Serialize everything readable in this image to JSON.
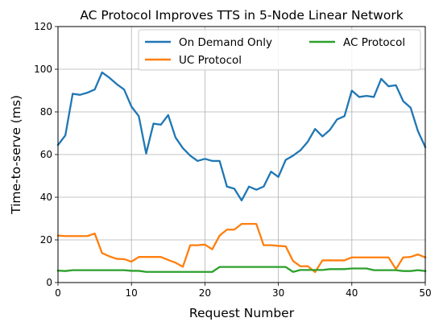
{
  "chart_data": {
    "type": "line",
    "title": "AC Protocol Improves TTS in 5-Node Linear Network",
    "xlabel": "Request Number",
    "ylabel": "Time-to-serve (ms)",
    "xlim": [
      0,
      50
    ],
    "ylim": [
      0,
      120
    ],
    "xticks": [
      0,
      10,
      20,
      30,
      40,
      50
    ],
    "yticks": [
      0,
      20,
      40,
      60,
      80,
      100,
      120
    ],
    "grid": true,
    "legend_position": "top-right",
    "x": [
      0,
      1,
      2,
      3,
      4,
      5,
      6,
      7,
      8,
      9,
      10,
      11,
      12,
      13,
      14,
      15,
      16,
      17,
      18,
      19,
      20,
      21,
      22,
      23,
      24,
      25,
      26,
      27,
      28,
      29,
      30,
      31,
      32,
      33,
      34,
      35,
      36,
      37,
      38,
      39,
      40,
      41,
      42,
      43,
      44,
      45,
      46,
      47,
      48,
      49,
      50
    ],
    "series": [
      {
        "name": "On Demand Only",
        "color": "#1f77b4",
        "values": [
          64.5,
          69,
          88.5,
          88,
          89,
          90.5,
          98.5,
          96,
          93,
          90.5,
          82.5,
          78,
          60.5,
          74.5,
          74,
          78.5,
          68,
          63,
          59.5,
          57,
          58,
          57,
          57,
          45,
          44,
          38.5,
          45,
          43.5,
          45,
          52,
          49.5,
          57.5,
          59.5,
          62,
          66,
          72,
          68.5,
          71.5,
          76.5,
          78,
          90,
          87,
          87.5,
          87,
          95.5,
          92,
          92.5,
          85,
          82,
          71,
          63.5
        ]
      },
      {
        "name": "UC Protocol",
        "color": "#ff7f0e",
        "values": [
          22,
          21.8,
          21.8,
          21.8,
          21.8,
          23,
          13.8,
          12.3,
          11.1,
          11,
          9.8,
          12,
          12,
          12,
          12,
          10.6,
          9.3,
          7.4,
          17.5,
          17.5,
          17.8,
          15.6,
          22,
          24.8,
          24.8,
          27.5,
          27.5,
          27.5,
          17.5,
          17.5,
          17.2,
          17,
          10.1,
          7.6,
          7.7,
          4.9,
          10.4,
          10.4,
          10.4,
          10.4,
          11.8,
          11.8,
          11.8,
          11.8,
          11.8,
          11.8,
          6.3,
          11.8,
          12,
          13.2,
          11.8
        ]
      },
      {
        "name": "AC Protocol",
        "color": "#2ca02c",
        "values": [
          5.6,
          5.4,
          5.8,
          5.8,
          5.8,
          5.8,
          5.8,
          5.8,
          5.8,
          5.8,
          5.5,
          5.5,
          5,
          5,
          5,
          5,
          5,
          5,
          5,
          5,
          5,
          5,
          7.3,
          7.3,
          7.3,
          7.3,
          7.3,
          7.3,
          7.3,
          7.3,
          7.3,
          7.3,
          5,
          5.9,
          5.9,
          5.9,
          5.9,
          6.3,
          6.3,
          6.3,
          6.6,
          6.6,
          6.6,
          5.8,
          5.8,
          5.8,
          5.8,
          5.4,
          5.4,
          5.8,
          5.4
        ]
      }
    ]
  }
}
